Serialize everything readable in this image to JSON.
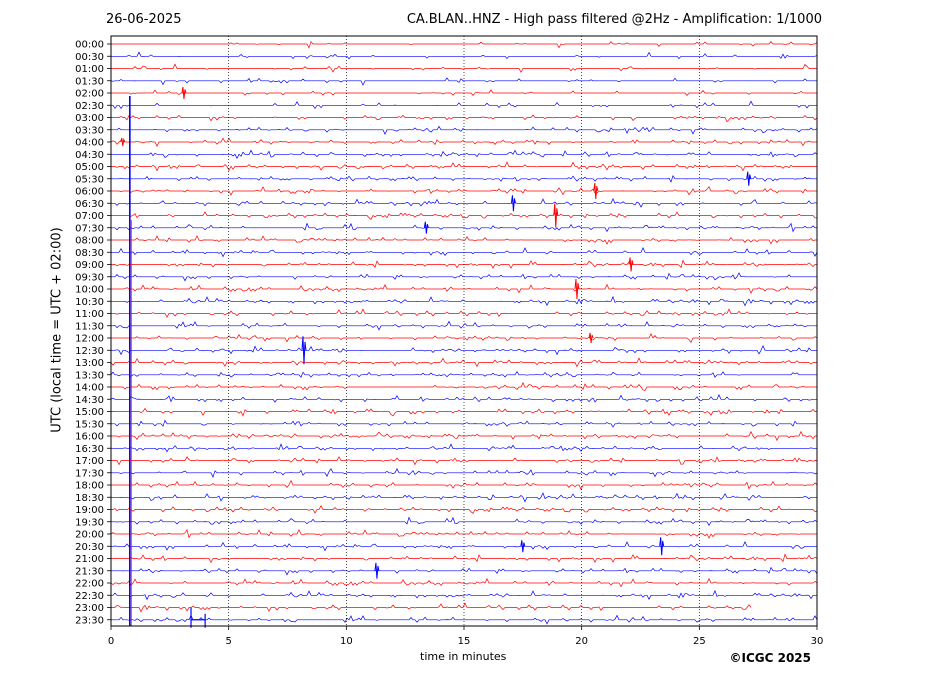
{
  "header": {
    "date": "26-06-2025",
    "title": "CA.BLAN..HNZ - High pass filtered @2Hz - Amplification: 1/1000"
  },
  "credit": "©ICGC 2025",
  "chart_data": {
    "type": "line",
    "xlabel": "time in minutes",
    "ylabel": "UTC (local time = UTC + 02:00)",
    "xlim": [
      0,
      30
    ],
    "xticks": [
      0,
      5,
      10,
      15,
      20,
      25,
      30
    ],
    "grid": "vertical dotted at 5-minute intervals",
    "row_colors": [
      "#ff0000",
      "#0000ff"
    ],
    "rows": [
      "00:00",
      "00:30",
      "01:00",
      "01:30",
      "02:00",
      "02:30",
      "03:00",
      "03:30",
      "04:00",
      "04:30",
      "05:00",
      "05:30",
      "06:00",
      "06:30",
      "07:00",
      "07:30",
      "08:00",
      "08:30",
      "09:00",
      "09:30",
      "10:00",
      "10:30",
      "11:00",
      "11:30",
      "12:00",
      "12:30",
      "13:00",
      "13:30",
      "14:00",
      "14:30",
      "15:00",
      "15:30",
      "16:00",
      "16:30",
      "17:00",
      "17:30",
      "18:00",
      "18:30",
      "19:00",
      "19:30",
      "20:00",
      "20:30",
      "21:00",
      "21:30",
      "22:00",
      "22:30",
      "23:00",
      "23:30"
    ],
    "trace_end_minute_last_rows": [
      27.2,
      30
    ]
  }
}
